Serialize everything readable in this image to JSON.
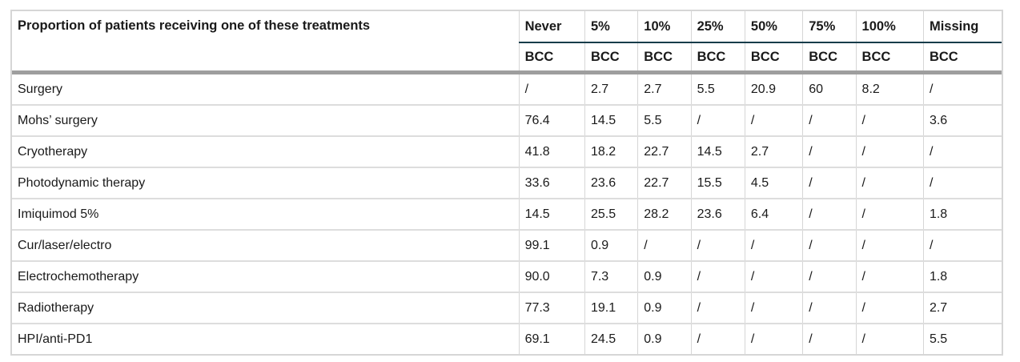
{
  "table": {
    "label_header": "Proportion of patients receiving one of these treatments",
    "columns": [
      "Never",
      "5%",
      "10%",
      "25%",
      "50%",
      "75%",
      "100%",
      "Missing"
    ],
    "subheaders": [
      "BCC",
      "BCC",
      "BCC",
      "BCC",
      "BCC",
      "BCC",
      "BCC",
      "BCC"
    ],
    "rows": [
      {
        "label": "Surgery",
        "values": [
          "/",
          "2.7",
          "2.7",
          "5.5",
          "20.9",
          "60",
          "8.2",
          "/"
        ]
      },
      {
        "label": "Mohs’ surgery",
        "values": [
          "76.4",
          "14.5",
          "5.5",
          "/",
          "/",
          "/",
          "/",
          "3.6"
        ]
      },
      {
        "label": "Cryotherapy",
        "values": [
          "41.8",
          "18.2",
          "22.7",
          "14.5",
          "2.7",
          "/",
          "/",
          "/"
        ]
      },
      {
        "label": "Photodynamic therapy",
        "values": [
          "33.6",
          "23.6",
          "22.7",
          "15.5",
          "4.5",
          "/",
          "/",
          "/"
        ]
      },
      {
        "label": "Imiquimod 5%",
        "values": [
          "14.5",
          "25.5",
          "28.2",
          "23.6",
          "6.4",
          "/",
          "/",
          "1.8"
        ]
      },
      {
        "label": "Cur/laser/electro",
        "values": [
          "99.1",
          "0.9",
          "/",
          "/",
          "/",
          "/",
          "/",
          "/"
        ]
      },
      {
        "label": "Electrochemotherapy",
        "values": [
          "90.0",
          "7.3",
          "0.9",
          "/",
          "/",
          "/",
          "/",
          "1.8"
        ]
      },
      {
        "label": "Radiotherapy",
        "values": [
          "77.3",
          "19.1",
          "0.9",
          "/",
          "/",
          "/",
          "/",
          "2.7"
        ]
      },
      {
        "label": "HPI/anti-PD1",
        "values": [
          "69.1",
          "24.5",
          "0.9",
          "/",
          "/",
          "/",
          "/",
          "5.5"
        ]
      }
    ]
  }
}
